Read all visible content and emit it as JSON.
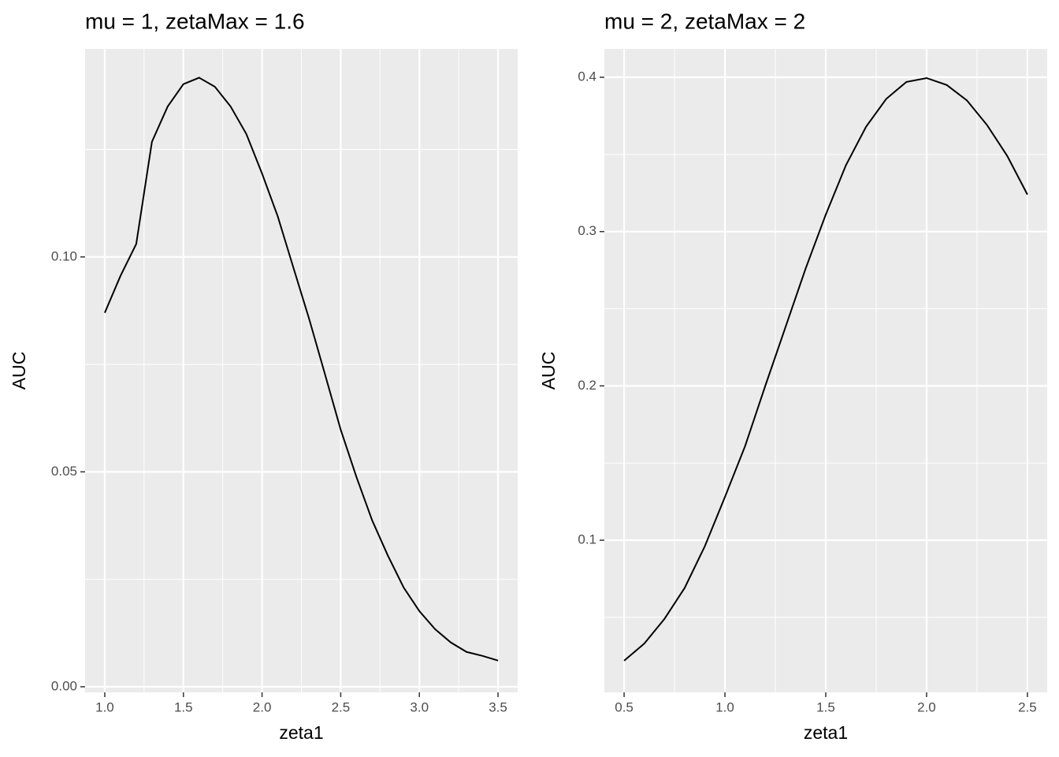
{
  "chart_data": [
    {
      "type": "line",
      "title": "mu = 1, zetaMax = 1.6",
      "xlabel": "zeta1",
      "ylabel": "AUC",
      "color": "#000000",
      "grid": true,
      "x": [
        1.0,
        1.1,
        1.2,
        1.3,
        1.4,
        1.5,
        1.6,
        1.7,
        1.8,
        1.9,
        2.0,
        2.1,
        2.2,
        2.3,
        2.4,
        2.5,
        2.6,
        2.7,
        2.8,
        2.9,
        3.0,
        3.1,
        3.2,
        3.3,
        3.4,
        3.5
      ],
      "values": [
        0.087,
        0.0956,
        0.103,
        0.1268,
        0.135,
        0.1402,
        0.1417,
        0.1396,
        0.135,
        0.1286,
        0.1194,
        0.1094,
        0.0974,
        0.0855,
        0.0727,
        0.0598,
        0.0488,
        0.0387,
        0.0305,
        0.0231,
        0.0176,
        0.0134,
        0.0103,
        0.0081,
        0.0072,
        0.0061
      ],
      "xlim": [
        0.875,
        3.625
      ],
      "ylim": [
        -0.0013,
        0.1484
      ],
      "xticks": [
        {
          "value": 1,
          "label": "1.0"
        },
        1.5,
        {
          "value": 2,
          "label": "2.0"
        },
        2.5,
        {
          "value": 3,
          "label": "3.0"
        },
        3.5
      ],
      "yticks": [
        {
          "value": 0,
          "label": "0.00"
        },
        {
          "value": 0.05,
          "label": "0.05"
        },
        {
          "value": 0.1,
          "label": "0.10"
        }
      ],
      "xminor": [
        1.25,
        1.75,
        2.25,
        2.75,
        3.25
      ],
      "yminor": [
        0.025,
        0.075,
        0.125
      ]
    },
    {
      "type": "line",
      "title": "mu = 2, zetaMax = 2",
      "xlabel": "zeta1",
      "ylabel": "AUC",
      "color": "#000000",
      "grid": true,
      "x": [
        0.5,
        0.6,
        0.7,
        0.8,
        0.9,
        1.0,
        1.1,
        1.2,
        1.3,
        1.4,
        1.5,
        1.6,
        1.7,
        1.8,
        1.9,
        2.0,
        2.1,
        2.2,
        2.3,
        2.4,
        2.5
      ],
      "values": [
        0.0219,
        0.033,
        0.049,
        0.069,
        0.096,
        0.128,
        0.161,
        0.2,
        0.238,
        0.276,
        0.311,
        0.343,
        0.368,
        0.386,
        0.397,
        0.3995,
        0.395,
        0.385,
        0.369,
        0.349,
        0.324
      ],
      "xlim": [
        0.402,
        2.598
      ],
      "ylim": [
        0.0014,
        0.4184
      ],
      "xticks": [
        0.5,
        {
          "value": 1,
          "label": "1.0"
        },
        1.5,
        {
          "value": 2,
          "label": "2.0"
        },
        2.5
      ],
      "yticks": [
        0.1,
        0.2,
        0.3,
        0.4
      ],
      "xminor": [
        0.75,
        1.25,
        1.75,
        2.25
      ],
      "yminor": [
        0.05,
        0.15,
        0.25,
        0.35
      ]
    }
  ]
}
